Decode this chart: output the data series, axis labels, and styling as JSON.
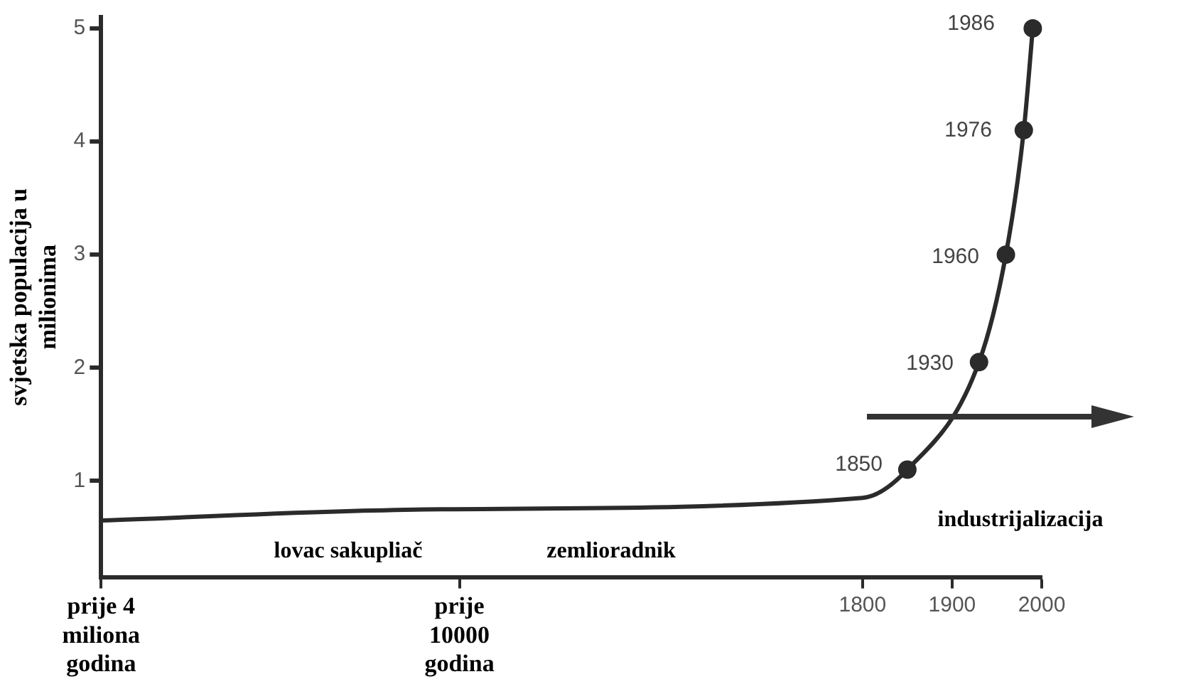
{
  "chart_data": {
    "type": "line",
    "ylabel": "svjetska populacija u milionima",
    "categories": [
      "prije 4 miliona godina",
      null,
      null,
      null,
      null,
      null,
      null,
      null,
      null,
      null,
      null,
      null,
      null,
      null,
      null,
      null,
      null,
      null,
      null,
      null,
      null,
      null,
      null,
      null,
      null,
      null,
      null,
      null,
      null,
      null,
      null,
      null,
      null,
      null,
      null,
      null,
      null,
      null,
      null,
      null,
      "prije 10000 godina",
      null,
      null,
      null,
      null,
      null,
      null,
      null,
      null,
      null,
      null,
      null,
      null,
      null,
      null,
      null,
      null,
      null,
      null,
      null,
      null,
      null,
      null,
      null,
      null,
      null,
      null,
      null,
      null,
      null,
      null,
      null,
      null,
      null,
      null,
      null,
      null,
      null,
      null,
      null,
      null,
      null,
      null,
      null,
      null,
      "1800",
      null,
      null,
      null,
      null,
      null,
      null,
      null,
      null,
      null,
      "1900",
      null,
      null,
      null,
      null,
      null,
      null,
      null,
      null,
      null,
      "2000"
    ],
    "series": [
      {
        "color": "#2b2b2b",
        "marker": "none",
        "values": [
          0.65,
          null,
          null,
          null,
          null,
          null,
          null,
          null,
          null,
          null,
          null,
          null,
          null,
          null,
          null,
          null,
          null,
          null,
          null,
          null,
          null,
          null,
          null,
          null,
          null,
          null,
          null,
          null,
          null,
          null,
          null,
          null,
          null,
          null,
          null,
          null,
          null,
          null,
          0.75,
          null,
          null,
          null,
          null,
          null,
          null,
          null,
          null,
          null,
          null,
          null,
          null,
          null,
          null,
          null,
          null,
          null,
          null,
          null,
          null,
          null,
          null,
          null,
          null,
          null,
          null,
          null,
          null,
          null,
          null,
          null,
          null,
          null,
          null,
          null,
          null,
          null,
          null,
          null,
          null,
          null,
          null,
          null,
          null,
          null,
          null,
          0.85,
          null,
          null,
          null,
          null,
          1.1,
          null,
          null,
          null,
          null,
          null,
          null,
          null,
          2.05,
          null,
          null,
          3.0,
          null,
          4.1,
          5.0,
          null
        ]
      },
      {
        "type": "scatter",
        "color": "#2b2b2b",
        "marker": "circle",
        "values": [
          null,
          null,
          null,
          null,
          null,
          null,
          null,
          null,
          null,
          null,
          null,
          null,
          null,
          null,
          null,
          null,
          null,
          null,
          null,
          null,
          null,
          null,
          null,
          null,
          null,
          null,
          null,
          null,
          null,
          null,
          null,
          null,
          null,
          null,
          null,
          null,
          null,
          null,
          null,
          null,
          null,
          null,
          null,
          null,
          null,
          null,
          null,
          null,
          null,
          null,
          null,
          null,
          null,
          null,
          null,
          null,
          null,
          null,
          null,
          null,
          null,
          null,
          null,
          null,
          null,
          null,
          null,
          null,
          null,
          null,
          null,
          null,
          null,
          null,
          null,
          null,
          null,
          null,
          null,
          null,
          null,
          null,
          null,
          null,
          null,
          null,
          null,
          null,
          null,
          null,
          1.1,
          null,
          null,
          null,
          null,
          null,
          null,
          null,
          2.05,
          null,
          null,
          3.0,
          null,
          4.1,
          5.0,
          null
        ]
      }
    ],
    "ylim": [
      0.15,
      5.1
    ],
    "yticks": [
      1,
      2,
      3,
      4,
      5
    ],
    "grid": false,
    "legend": false,
    "annotations": [
      "1850",
      "1930",
      "1960",
      "1976",
      "1986",
      "lovac sakupliač",
      "zemlioradnik",
      "industrijalizacija"
    ]
  }
}
